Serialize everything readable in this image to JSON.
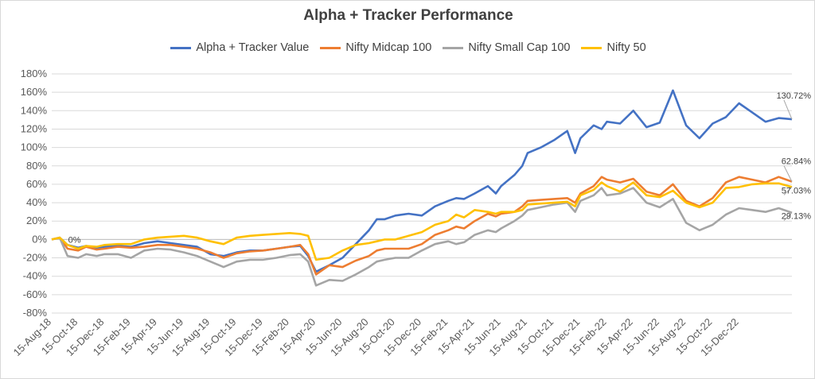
{
  "chart_data": {
    "type": "line",
    "title": "Alpha + Tracker Performance",
    "xlabel": "",
    "ylabel": "",
    "ylim": [
      -80,
      180
    ],
    "ytick_step": 20,
    "yticks": [
      "180%",
      "160%",
      "140%",
      "120%",
      "100%",
      "80%",
      "60%",
      "40%",
      "20%",
      "0%",
      "-20%",
      "-40%",
      "-60%",
      "-80%"
    ],
    "x_ticks": [
      "15-Aug-18",
      "15-Oct-18",
      "15-Dec-18",
      "15-Feb-19",
      "15-Apr-19",
      "15-Jun-19",
      "15-Aug-19",
      "15-Oct-19",
      "15-Dec-19",
      "15-Feb-20",
      "15-Apr-20",
      "15-Jun-20",
      "15-Aug-20",
      "15-Oct-20",
      "15-Dec-20",
      "15-Feb-21",
      "15-Apr-21",
      "15-Jun-21",
      "15-Aug-21",
      "15-Oct-21",
      "15-Dec-21",
      "15-Feb-22",
      "15-Apr-22",
      "15-Jun-22",
      "15-Aug-22",
      "15-Oct-22",
      "15-Dec-22"
    ],
    "grid": true,
    "legend_position": "top",
    "series": [
      {
        "name": "Alpha + Tracker Value",
        "color": "#4472C4",
        "end_label": "130.72%",
        "values": [
          [
            0,
            0
          ],
          [
            0.3,
            2
          ],
          [
            0.6,
            -6
          ],
          [
            1,
            -9
          ],
          [
            1.3,
            -7
          ],
          [
            1.7,
            -9
          ],
          [
            2,
            -8
          ],
          [
            2.5,
            -7
          ],
          [
            3,
            -8
          ],
          [
            3.5,
            -4
          ],
          [
            4,
            -2
          ],
          [
            4.5,
            -4
          ],
          [
            5,
            -6
          ],
          [
            5.5,
            -8
          ],
          [
            6,
            -16
          ],
          [
            6.5,
            -18
          ],
          [
            7,
            -14
          ],
          [
            7.5,
            -12
          ],
          [
            8,
            -12
          ],
          [
            8.5,
            -10
          ],
          [
            9,
            -8
          ],
          [
            9.4,
            -7
          ],
          [
            9.7,
            -18
          ],
          [
            10,
            -35
          ],
          [
            10.5,
            -28
          ],
          [
            11,
            -20
          ],
          [
            11.5,
            -5
          ],
          [
            12,
            10
          ],
          [
            12.3,
            22
          ],
          [
            12.6,
            22
          ],
          [
            13,
            26
          ],
          [
            13.5,
            28
          ],
          [
            14,
            26
          ],
          [
            14.5,
            36
          ],
          [
            15,
            42
          ],
          [
            15.3,
            45
          ],
          [
            15.6,
            44
          ],
          [
            16,
            50
          ],
          [
            16.5,
            58
          ],
          [
            16.8,
            50
          ],
          [
            17,
            58
          ],
          [
            17.5,
            70
          ],
          [
            17.8,
            80
          ],
          [
            18,
            94
          ],
          [
            18.5,
            100
          ],
          [
            19,
            108
          ],
          [
            19.5,
            118
          ],
          [
            19.8,
            94
          ],
          [
            20,
            110
          ],
          [
            20.5,
            124
          ],
          [
            20.8,
            120
          ],
          [
            21,
            128
          ],
          [
            21.5,
            126
          ],
          [
            22,
            140
          ],
          [
            22.5,
            122
          ],
          [
            23,
            127
          ],
          [
            23.5,
            162
          ],
          [
            24,
            124
          ],
          [
            24.5,
            110
          ],
          [
            25,
            126
          ],
          [
            25.5,
            133
          ],
          [
            26,
            148
          ],
          [
            26.5,
            138
          ],
          [
            27,
            128
          ],
          [
            27.5,
            132
          ],
          [
            28,
            130.72
          ]
        ]
      },
      {
        "name": "Nifty Midcap 100",
        "color": "#ED7D31",
        "end_label": "62.84%",
        "values": [
          [
            0,
            0
          ],
          [
            0.3,
            2
          ],
          [
            0.6,
            -10
          ],
          [
            1,
            -12
          ],
          [
            1.3,
            -8
          ],
          [
            1.7,
            -11
          ],
          [
            2,
            -10
          ],
          [
            2.5,
            -8
          ],
          [
            3,
            -9
          ],
          [
            3.5,
            -8
          ],
          [
            4,
            -6
          ],
          [
            4.5,
            -6
          ],
          [
            5,
            -8
          ],
          [
            5.5,
            -10
          ],
          [
            6,
            -14
          ],
          [
            6.5,
            -20
          ],
          [
            7,
            -15
          ],
          [
            7.5,
            -13
          ],
          [
            8,
            -12
          ],
          [
            8.5,
            -10
          ],
          [
            9,
            -8
          ],
          [
            9.4,
            -6
          ],
          [
            9.7,
            -16
          ],
          [
            10,
            -38
          ],
          [
            10.5,
            -28
          ],
          [
            11,
            -30
          ],
          [
            11.5,
            -23
          ],
          [
            12,
            -18
          ],
          [
            12.3,
            -12
          ],
          [
            12.6,
            -10
          ],
          [
            13,
            -10
          ],
          [
            13.5,
            -10
          ],
          [
            14,
            -5
          ],
          [
            14.5,
            5
          ],
          [
            15,
            10
          ],
          [
            15.3,
            14
          ],
          [
            15.6,
            12
          ],
          [
            16,
            20
          ],
          [
            16.5,
            28
          ],
          [
            16.8,
            25
          ],
          [
            17,
            28
          ],
          [
            17.5,
            30
          ],
          [
            17.8,
            36
          ],
          [
            18,
            42
          ],
          [
            18.5,
            43
          ],
          [
            19,
            44
          ],
          [
            19.5,
            45
          ],
          [
            19.8,
            40
          ],
          [
            20,
            50
          ],
          [
            20.5,
            58
          ],
          [
            20.8,
            68
          ],
          [
            21,
            65
          ],
          [
            21.5,
            62
          ],
          [
            22,
            66
          ],
          [
            22.5,
            52
          ],
          [
            23,
            48
          ],
          [
            23.5,
            60
          ],
          [
            24,
            42
          ],
          [
            24.5,
            36
          ],
          [
            25,
            45
          ],
          [
            25.5,
            62
          ],
          [
            26,
            68
          ],
          [
            26.5,
            65
          ],
          [
            27,
            62
          ],
          [
            27.5,
            68
          ],
          [
            28,
            62.84
          ]
        ]
      },
      {
        "name": "Nifty Small Cap 100",
        "color": "#A5A5A5",
        "end_label": "29.13%",
        "values": [
          [
            0,
            0
          ],
          [
            0.3,
            2
          ],
          [
            0.6,
            -18
          ],
          [
            1,
            -20
          ],
          [
            1.3,
            -16
          ],
          [
            1.7,
            -18
          ],
          [
            2,
            -16
          ],
          [
            2.5,
            -16
          ],
          [
            3,
            -20
          ],
          [
            3.5,
            -12
          ],
          [
            4,
            -10
          ],
          [
            4.5,
            -11
          ],
          [
            5,
            -14
          ],
          [
            5.5,
            -18
          ],
          [
            6,
            -24
          ],
          [
            6.5,
            -30
          ],
          [
            7,
            -24
          ],
          [
            7.5,
            -22
          ],
          [
            8,
            -22
          ],
          [
            8.5,
            -20
          ],
          [
            9,
            -17
          ],
          [
            9.4,
            -16
          ],
          [
            9.7,
            -24
          ],
          [
            10,
            -50
          ],
          [
            10.5,
            -44
          ],
          [
            11,
            -45
          ],
          [
            11.5,
            -38
          ],
          [
            12,
            -30
          ],
          [
            12.3,
            -24
          ],
          [
            12.6,
            -22
          ],
          [
            13,
            -20
          ],
          [
            13.5,
            -20
          ],
          [
            14,
            -12
          ],
          [
            14.5,
            -5
          ],
          [
            15,
            -2
          ],
          [
            15.3,
            -5
          ],
          [
            15.6,
            -3
          ],
          [
            16,
            5
          ],
          [
            16.5,
            10
          ],
          [
            16.8,
            8
          ],
          [
            17,
            12
          ],
          [
            17.5,
            20
          ],
          [
            17.8,
            26
          ],
          [
            18,
            32
          ],
          [
            18.5,
            35
          ],
          [
            19,
            38
          ],
          [
            19.5,
            40
          ],
          [
            19.8,
            30
          ],
          [
            20,
            42
          ],
          [
            20.5,
            48
          ],
          [
            20.8,
            56
          ],
          [
            21,
            48
          ],
          [
            21.5,
            50
          ],
          [
            22,
            56
          ],
          [
            22.5,
            40
          ],
          [
            23,
            35
          ],
          [
            23.5,
            44
          ],
          [
            24,
            18
          ],
          [
            24.5,
            10
          ],
          [
            25,
            16
          ],
          [
            25.5,
            27
          ],
          [
            26,
            34
          ],
          [
            26.5,
            32
          ],
          [
            27,
            30
          ],
          [
            27.5,
            34
          ],
          [
            28,
            29.13
          ]
        ]
      },
      {
        "name": "Nifty 50",
        "color": "#FFC000",
        "end_label": "57.03%",
        "values": [
          [
            0,
            0
          ],
          [
            0.3,
            2
          ],
          [
            0.6,
            -6
          ],
          [
            1,
            -10
          ],
          [
            1.3,
            -7
          ],
          [
            1.7,
            -8
          ],
          [
            2,
            -6
          ],
          [
            2.5,
            -5
          ],
          [
            3,
            -5
          ],
          [
            3.5,
            0
          ],
          [
            4,
            2
          ],
          [
            4.5,
            3
          ],
          [
            5,
            4
          ],
          [
            5.5,
            2
          ],
          [
            6,
            -2
          ],
          [
            6.5,
            -5
          ],
          [
            7,
            2
          ],
          [
            7.5,
            4
          ],
          [
            8,
            5
          ],
          [
            8.5,
            6
          ],
          [
            9,
            7
          ],
          [
            9.4,
            6
          ],
          [
            9.7,
            4
          ],
          [
            10,
            -22
          ],
          [
            10.5,
            -20
          ],
          [
            11,
            -12
          ],
          [
            11.5,
            -6
          ],
          [
            12,
            -4
          ],
          [
            12.3,
            -2
          ],
          [
            12.6,
            0
          ],
          [
            13,
            0
          ],
          [
            13.5,
            4
          ],
          [
            14,
            8
          ],
          [
            14.5,
            16
          ],
          [
            15,
            20
          ],
          [
            15.3,
            27
          ],
          [
            15.6,
            24
          ],
          [
            16,
            32
          ],
          [
            16.5,
            30
          ],
          [
            16.8,
            28
          ],
          [
            17,
            30
          ],
          [
            17.5,
            30
          ],
          [
            17.8,
            32
          ],
          [
            18,
            38
          ],
          [
            18.5,
            39
          ],
          [
            19,
            40
          ],
          [
            19.5,
            41
          ],
          [
            19.8,
            36
          ],
          [
            20,
            48
          ],
          [
            20.5,
            54
          ],
          [
            20.8,
            62
          ],
          [
            21,
            58
          ],
          [
            21.5,
            52
          ],
          [
            22,
            62
          ],
          [
            22.5,
            48
          ],
          [
            23,
            46
          ],
          [
            23.5,
            53
          ],
          [
            24,
            40
          ],
          [
            24.5,
            35
          ],
          [
            25,
            40
          ],
          [
            25.5,
            56
          ],
          [
            26,
            57
          ],
          [
            26.5,
            60
          ],
          [
            27,
            61
          ],
          [
            27.5,
            61
          ],
          [
            28,
            57.03
          ]
        ]
      }
    ],
    "annotations": [
      {
        "text": "0%",
        "x": 0.5,
        "y": 0
      }
    ]
  }
}
